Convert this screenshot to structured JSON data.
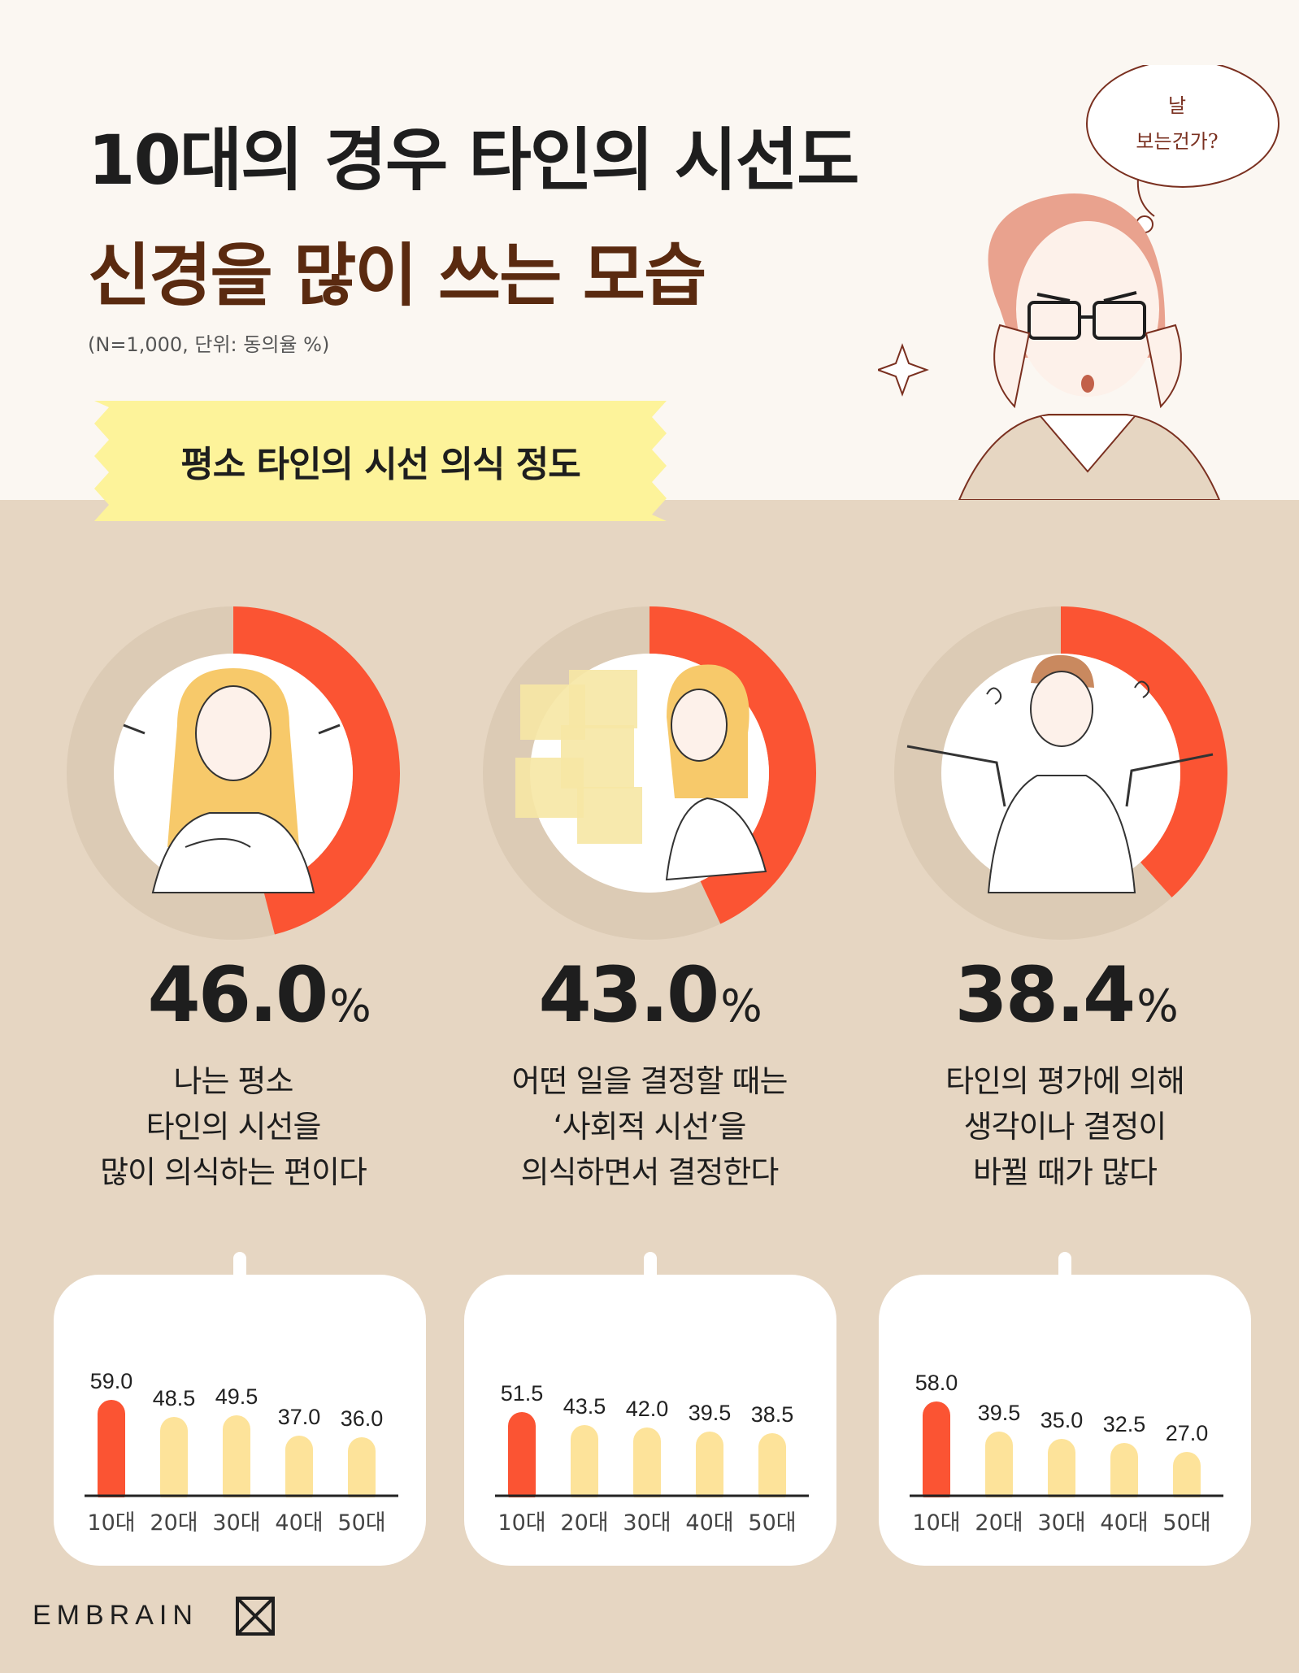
{
  "header": {
    "title_line1": "10대의 경우 타인의 시선도",
    "title_line2": "신경을 많이 쓰는 모습",
    "note": "(N=1,000, 단위: 동의율 %)",
    "banner": "평소 타인의 시선 의식 정도",
    "bubble_line1": "날",
    "bubble_line2": "보는건가?"
  },
  "colors": {
    "highlight": "#fb5433",
    "bar": "#fde39a",
    "donut_track": "#dccbb5",
    "background": "#e6d6c2",
    "banner": "#fdf39a"
  },
  "footer": {
    "logo_text": "EMBRAIN"
  },
  "chart_data": [
    {
      "type": "pie",
      "percent": 46.0,
      "percent_label": "46.0",
      "unit": "%",
      "description": [
        "나는 평소",
        "타인의 시선을",
        "많이 의식하는 편이다"
      ],
      "bars": {
        "type": "bar",
        "categories": [
          "10대",
          "20대",
          "30대",
          "40대",
          "50대"
        ],
        "values": [
          59.0,
          48.5,
          49.5,
          37.0,
          36.0
        ],
        "labels": [
          "59.0",
          "48.5",
          "49.5",
          "37.0",
          "36.0"
        ]
      }
    },
    {
      "type": "pie",
      "percent": 43.0,
      "percent_label": "43.0",
      "unit": "%",
      "description": [
        "어떤 일을 결정할 때는",
        "‘사회적 시선’을",
        "의식하면서 결정한다"
      ],
      "bars": {
        "type": "bar",
        "categories": [
          "10대",
          "20대",
          "30대",
          "40대",
          "50대"
        ],
        "values": [
          51.5,
          43.5,
          42.0,
          39.5,
          38.5
        ],
        "labels": [
          "51.5",
          "43.5",
          "42.0",
          "39.5",
          "38.5"
        ]
      }
    },
    {
      "type": "pie",
      "percent": 38.4,
      "percent_label": "38.4",
      "unit": "%",
      "description": [
        "타인의 평가에 의해",
        "생각이나 결정이",
        "바뀔 때가 많다"
      ],
      "bars": {
        "type": "bar",
        "categories": [
          "10대",
          "20대",
          "30대",
          "40대",
          "50대"
        ],
        "values": [
          58.0,
          39.5,
          35.0,
          32.5,
          27.0
        ],
        "labels": [
          "58.0",
          "39.5",
          "35.0",
          "32.5",
          "27.0"
        ]
      }
    }
  ]
}
